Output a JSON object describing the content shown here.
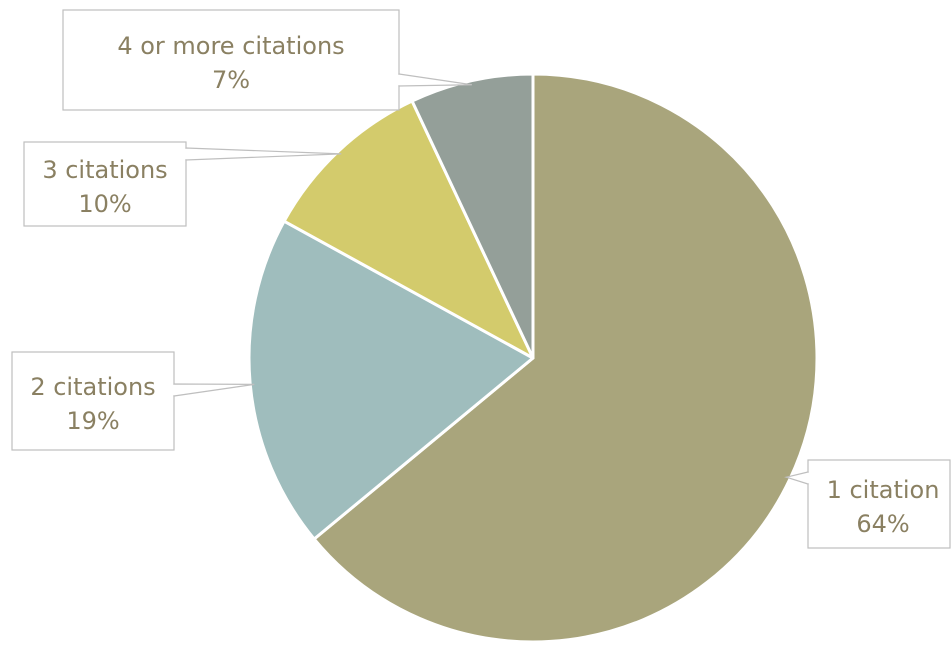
{
  "chart_data": {
    "type": "pie",
    "title": "",
    "slices": [
      {
        "label": "1 citation",
        "value": 64,
        "value_label": "64%",
        "color": "#a9a57c"
      },
      {
        "label": "2 citations",
        "value": 19,
        "value_label": "19%",
        "color": "#9fbdbd"
      },
      {
        "label": "3 citations",
        "value": 10,
        "value_label": "10%",
        "color": "#d3cb6c"
      },
      {
        "label": "4 or more citations",
        "value": 7,
        "value_label": "7%",
        "color": "#949f99"
      }
    ],
    "start_angle_deg": 0,
    "direction": "clockwise",
    "legend": "none",
    "label_style": "callout",
    "label_color": "#8a8062"
  }
}
